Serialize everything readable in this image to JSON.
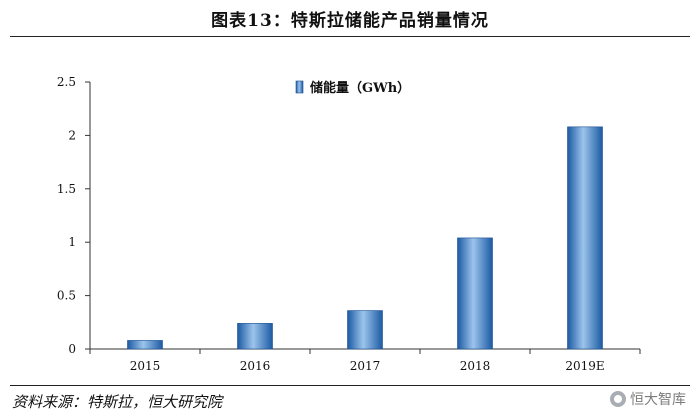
{
  "header": {
    "title": "图表13：特斯拉储能产品销量情况"
  },
  "footer": {
    "source": "资料来源：特斯拉，恒大研究院",
    "watermark": "恒大智库"
  },
  "colors": {
    "bar_dark": "#1f5fa8",
    "bar_light": "#8fbbe6",
    "axis": "#333333"
  },
  "chart_data": {
    "type": "bar",
    "categories": [
      "2015",
      "2016",
      "2017",
      "2018",
      "2019E"
    ],
    "series": [
      {
        "name": "储能量（GWh）",
        "values": [
          0.08,
          0.24,
          0.36,
          1.04,
          2.08
        ]
      }
    ],
    "ylim": [
      0,
      2.5
    ],
    "yticks": [
      "0",
      "0.5",
      "1",
      "1.5",
      "2",
      "2.5"
    ],
    "ytick_values": [
      0,
      0.5,
      1,
      1.5,
      2,
      2.5
    ],
    "legend_position": "top-center",
    "grid": false
  }
}
